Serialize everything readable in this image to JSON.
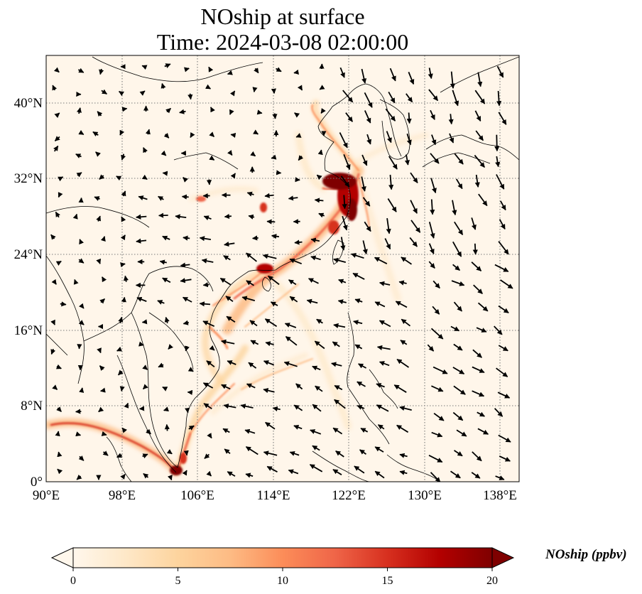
{
  "title": {
    "line1": "NOship at surface",
    "line2": "Time: 2024-03-08 02:00:00"
  },
  "axes": {
    "lon_range": [
      90,
      140
    ],
    "lat_range": [
      0,
      45
    ],
    "x_ticks": [
      "90°E",
      "98°E",
      "106°E",
      "114°E",
      "122°E",
      "130°E",
      "138°E"
    ],
    "y_ticks": [
      "0°",
      "8°N",
      "16°N",
      "24°N",
      "32°N",
      "40°N"
    ],
    "gridlines": true
  },
  "colorbar": {
    "label": "NOship (ppbv)",
    "min": 0,
    "max": 20,
    "ticks": [
      "0",
      "5",
      "10",
      "15",
      "20"
    ],
    "extend": "both",
    "colormap": [
      "#fff7ec",
      "#fee8c8",
      "#fdd49e",
      "#fdbb84",
      "#fc8d59",
      "#ef6548",
      "#d7301f",
      "#b30000",
      "#7f0000"
    ]
  },
  "colors": {
    "background": "#fff6ea",
    "coastline": "#000000",
    "grid": "#7a7a7a"
  }
}
